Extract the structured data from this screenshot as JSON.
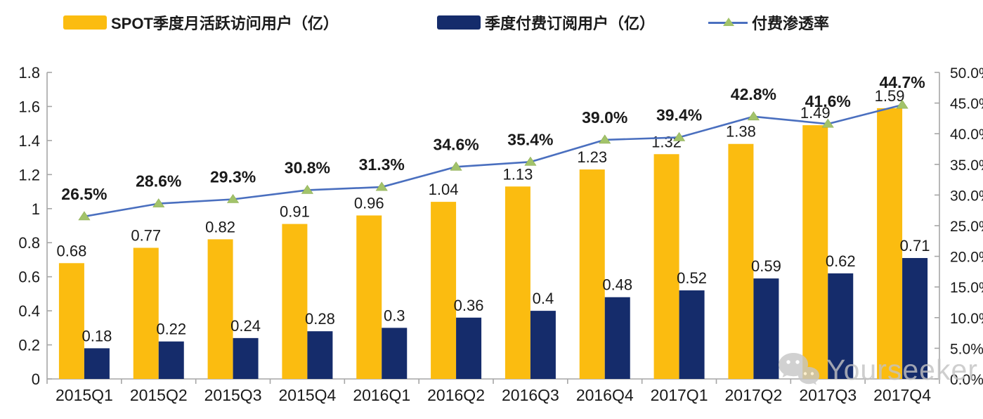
{
  "legend": {
    "items": [
      {
        "label": "SPOT季度月活跃访问用户（亿）",
        "swatch": "bar",
        "color": "#FBBC10"
      },
      {
        "label": "季度付费订阅用户（亿）",
        "swatch": "bar",
        "color": "#152C6B"
      },
      {
        "label": "付费渗透率",
        "swatch": "line-triangle",
        "color": "#4A6FBF",
        "marker_color": "#A2C36A"
      }
    ]
  },
  "chart_data": {
    "type": "bar+line combo",
    "categories": [
      "2015Q1",
      "2015Q2",
      "2015Q3",
      "2015Q4",
      "2016Q1",
      "2016Q2",
      "2016Q3",
      "2016Q4",
      "2017Q1",
      "2017Q2",
      "2017Q3",
      "2017Q4"
    ],
    "series": [
      {
        "name": "SPOT季度月活跃访问用户（亿）",
        "type": "bar",
        "axis": "left",
        "color": "#FBBC10",
        "values": [
          0.68,
          0.77,
          0.82,
          0.91,
          0.96,
          1.04,
          1.13,
          1.23,
          1.32,
          1.38,
          1.49,
          1.59
        ],
        "labels": [
          "0.68",
          "0.77",
          "0.82",
          "0.91",
          "0.96",
          "1.04",
          "1.13",
          "1.23",
          "1.32",
          "1.38",
          "1.49",
          "1.59"
        ]
      },
      {
        "name": "季度付费订阅用户（亿）",
        "type": "bar",
        "axis": "left",
        "color": "#152C6B",
        "values": [
          0.18,
          0.22,
          0.24,
          0.28,
          0.3,
          0.36,
          0.4,
          0.48,
          0.52,
          0.59,
          0.62,
          0.71
        ],
        "labels": [
          "0.18",
          "0.22",
          "0.24",
          "0.28",
          "0.3",
          "0.36",
          "0.4",
          "0.48",
          "0.52",
          "0.59",
          "0.62",
          "0.71"
        ]
      },
      {
        "name": "付费渗透率",
        "type": "line",
        "axis": "right",
        "color": "#4A6FBF",
        "marker": "triangle",
        "marker_color": "#A2C36A",
        "values": [
          26.5,
          28.6,
          29.3,
          30.8,
          31.3,
          34.6,
          35.4,
          39.0,
          39.4,
          42.8,
          41.6,
          44.7
        ],
        "labels": [
          "26.5%",
          "28.6%",
          "29.3%",
          "30.8%",
          "31.3%",
          "34.6%",
          "35.4%",
          "39.0%",
          "39.4%",
          "42.8%",
          "41.6%",
          "44.7%"
        ]
      }
    ],
    "left_axis": {
      "min": 0,
      "max": 1.8,
      "step": 0.2,
      "ticks": [
        "0",
        "0.2",
        "0.4",
        "0.6",
        "0.8",
        "1",
        "1.2",
        "1.4",
        "1.6",
        "1.8"
      ]
    },
    "right_axis": {
      "min": 0,
      "max": 50,
      "step": 5,
      "ticks": [
        "0.0%",
        "5.0%",
        "10.0%",
        "15.0%",
        "20.0%",
        "25.0%",
        "30.0%",
        "35.0%",
        "40.0%",
        "45.0%",
        "50.0%"
      ]
    },
    "grid": false,
    "legend_position": "top",
    "axis_color": "#a6a6a6",
    "label_color": "#1a1a1a"
  },
  "watermark": {
    "text": "Yourseeker",
    "icon": "wechat-icon"
  }
}
